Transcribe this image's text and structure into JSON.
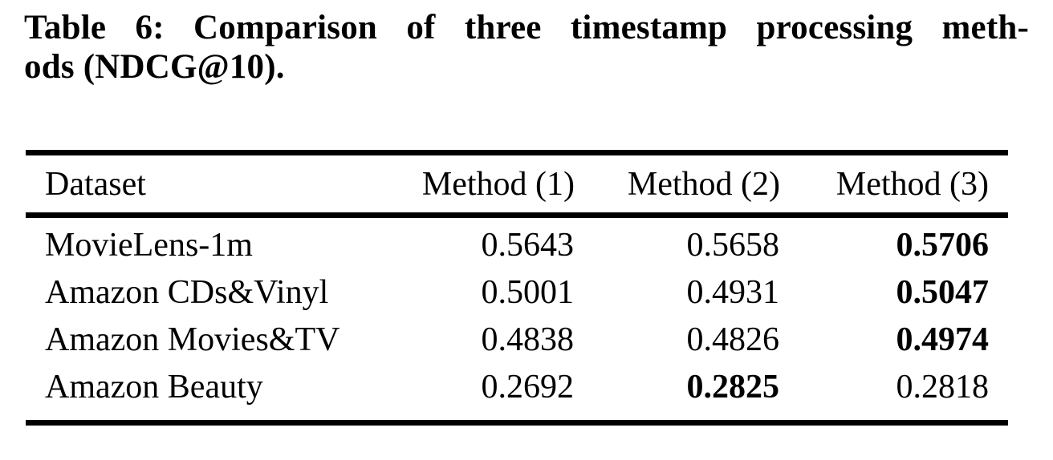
{
  "caption": {
    "line1": "Table 6: Comparison of three timestamp processing meth-",
    "line2": "ods (NDCG@10).",
    "full_text": "Table 6: Comparison of three timestamp processing methods (NDCG@10)."
  },
  "table": {
    "columns": [
      "Dataset",
      "Method (1)",
      "Method (2)",
      "Method (3)"
    ],
    "rows": [
      {
        "cells": [
          {
            "value": "MovieLens-1m",
            "bold": false
          },
          {
            "value": "0.5643",
            "bold": false
          },
          {
            "value": "0.5658",
            "bold": false
          },
          {
            "value": "0.5706",
            "bold": true
          }
        ],
        "best_method": "Method (3)"
      },
      {
        "cells": [
          {
            "value": "Amazon CDs&Vinyl",
            "bold": false
          },
          {
            "value": "0.5001",
            "bold": false
          },
          {
            "value": "0.4931",
            "bold": false
          },
          {
            "value": "0.5047",
            "bold": true
          }
        ],
        "best_method": "Method (3)"
      },
      {
        "cells": [
          {
            "value": "Amazon Movies&TV",
            "bold": false
          },
          {
            "value": "0.4838",
            "bold": false
          },
          {
            "value": "0.4826",
            "bold": false
          },
          {
            "value": "0.4974",
            "bold": true
          }
        ],
        "best_method": "Method (3)"
      },
      {
        "cells": [
          {
            "value": "Amazon Beauty",
            "bold": false
          },
          {
            "value": "0.2692",
            "bold": false
          },
          {
            "value": "0.2825",
            "bold": true
          },
          {
            "value": "0.2818",
            "bold": false
          }
        ],
        "best_method": "Method (2)"
      }
    ]
  },
  "chart_data": {
    "type": "table",
    "title": "Table 6: Comparison of three timestamp processing methods (NDCG@10).",
    "metric": "NDCG@10",
    "categories": [
      "MovieLens-1m",
      "Amazon CDs&Vinyl",
      "Amazon Movies&TV",
      "Amazon Beauty"
    ],
    "series": [
      {
        "name": "Method (1)",
        "values": [
          0.5643,
          0.5001,
          0.4838,
          0.2692
        ]
      },
      {
        "name": "Method (2)",
        "values": [
          0.5658,
          0.4931,
          0.4826,
          0.2825
        ]
      },
      {
        "name": "Method (3)",
        "values": [
          0.5706,
          0.5047,
          0.4974,
          0.2818
        ]
      }
    ],
    "best_per_row": [
      "Method (3)",
      "Method (3)",
      "Method (3)",
      "Method (2)"
    ]
  },
  "colors": {
    "text": "#000000",
    "background": "#ffffff",
    "rule": "#000000"
  }
}
